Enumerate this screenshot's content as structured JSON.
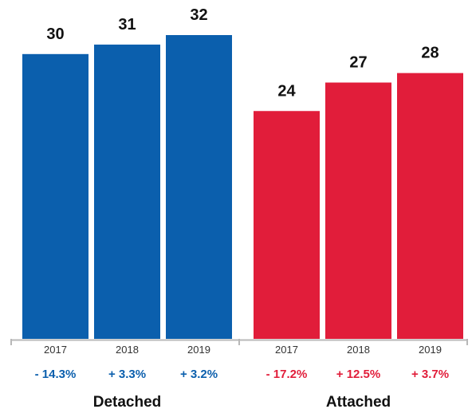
{
  "chart_data": {
    "type": "bar",
    "ylim": [
      0,
      35
    ],
    "grid": false,
    "groups": [
      {
        "name": "Detached",
        "color": "#0b5fad",
        "categories": [
          "2017",
          "2018",
          "2019"
        ],
        "values": [
          30,
          31,
          32
        ],
        "changes": [
          "- 14.3%",
          "+ 3.3%",
          "+ 3.2%"
        ]
      },
      {
        "name": "Attached",
        "color": "#e11d3a",
        "categories": [
          "2017",
          "2018",
          "2019"
        ],
        "values": [
          24,
          27,
          28
        ],
        "changes": [
          "- 17.2%",
          "+ 12.5%",
          "+ 3.7%"
        ]
      }
    ]
  }
}
